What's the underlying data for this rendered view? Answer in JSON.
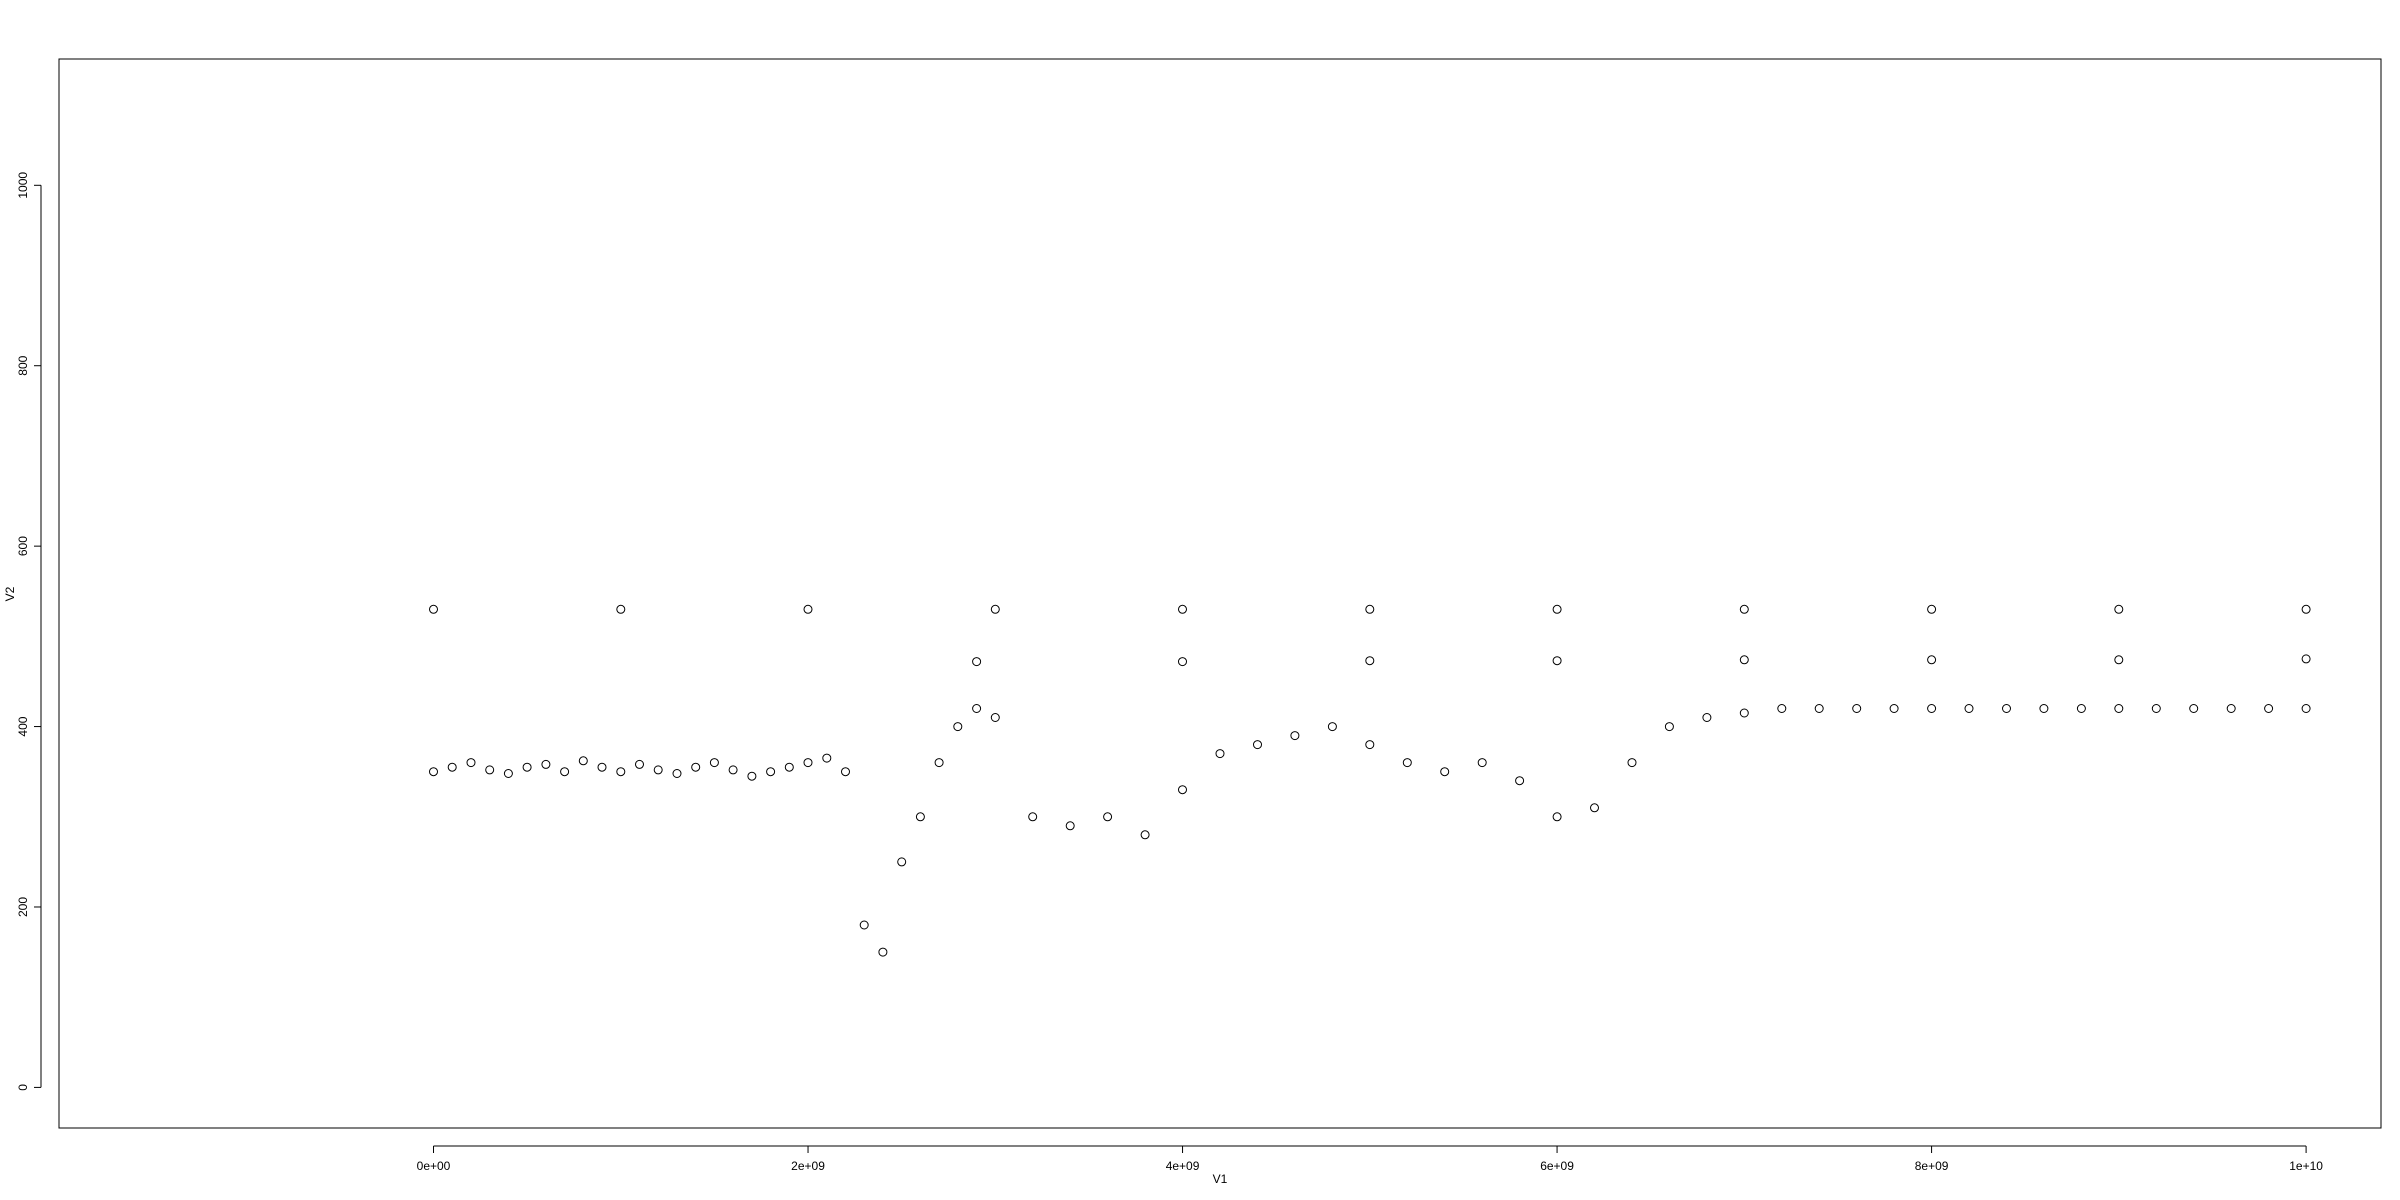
{
  "chart_data": {
    "type": "scatter",
    "title": "",
    "xlabel": "V1",
    "ylabel": "V2",
    "xlim": [
      -2000000000,
      10400000000
    ],
    "ylim": [
      -45,
      1140
    ],
    "x_ticks": [
      0,
      2000000000,
      4000000000,
      6000000000,
      8000000000,
      10000000000
    ],
    "x_tick_labels": [
      "0e+00",
      "2e+09",
      "4e+09",
      "6e+09",
      "8e+09",
      "1e+10"
    ],
    "y_ticks": [
      0,
      200,
      400,
      600,
      800,
      1000
    ],
    "y_tick_labels": [
      "0",
      "200",
      "400",
      "600",
      "800",
      "1000"
    ],
    "grid": false,
    "marker": "open-circle",
    "series": [
      {
        "x": [
          0,
          100000000,
          200000000,
          300000000,
          400000000,
          500000000,
          600000000,
          700000000,
          800000000,
          900000000,
          1000000000,
          1100000000,
          1200000000,
          1300000000,
          1400000000,
          1500000000,
          1600000000,
          1700000000,
          1800000000,
          1900000000,
          2000000000,
          2100000000,
          2200000000,
          2300000000,
          2400000000,
          2500000000,
          2600000000,
          2700000000,
          2800000000,
          2900000000,
          3000000000,
          3200000000,
          3400000000,
          3600000000,
          3800000000,
          4000000000,
          4200000000,
          4400000000,
          4600000000,
          4800000000,
          5000000000,
          5200000000,
          5400000000,
          5600000000,
          5800000000,
          6000000000,
          6200000000,
          6400000000,
          6600000000,
          6800000000,
          7000000000,
          7200000000,
          7400000000,
          7600000000,
          7800000000,
          8000000000,
          8200000000,
          8400000000,
          8600000000,
          8800000000,
          9000000000,
          9200000000,
          9400000000,
          9600000000,
          9800000000,
          10000000000
        ],
        "y": [
          350,
          355,
          360,
          352,
          348,
          355,
          358,
          350,
          362,
          355,
          350,
          358,
          352,
          348,
          355,
          360,
          352,
          345,
          350,
          355,
          360,
          365,
          350,
          180,
          150,
          250,
          300,
          360,
          400,
          420,
          410,
          300,
          290,
          300,
          280,
          330,
          370,
          380,
          390,
          400,
          380,
          360,
          350,
          360,
          340,
          300,
          310,
          360,
          400,
          410,
          415,
          420,
          420,
          420,
          420,
          420,
          420,
          420,
          420,
          420,
          420,
          420,
          420,
          420,
          420,
          420
        ]
      },
      {
        "x": [
          0,
          1000000000,
          2000000000,
          3000000000,
          4000000000,
          5000000000,
          6000000000,
          7000000000,
          8000000000,
          9000000000,
          10000000000
        ],
        "y": [
          530,
          530,
          530,
          530,
          530,
          530,
          530,
          530,
          530,
          530,
          530
        ]
      },
      {
        "x": [
          2900000000,
          4000000000,
          5000000000,
          6000000000,
          7000000000,
          8000000000,
          9000000000,
          10000000000
        ],
        "y": [
          472,
          472,
          473,
          473,
          474,
          474,
          474,
          475
        ]
      }
    ]
  }
}
